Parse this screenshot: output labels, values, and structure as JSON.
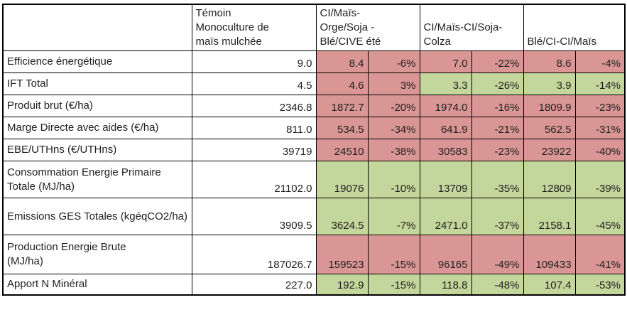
{
  "table": {
    "header": {
      "corner": "",
      "control": "Témoin Monoculture de maïs mulchée",
      "systems": [
        "CI/Maïs-Orge/Soja - Blé/CIVE été",
        "CI/Maïs-CI/Soja-Colza",
        "Blé/CI-CI/Maïs"
      ]
    },
    "colors": {
      "worse_fill": "#d99694",
      "better_fill": "#c3d69b",
      "border": "#000000",
      "text": "#1f1f1f",
      "background": "#ffffff"
    },
    "rows": [
      {
        "label": "Efficience énergétique",
        "control": "9.0",
        "pairs": [
          {
            "value": "8.4",
            "pct": "-6%",
            "tone": "worse"
          },
          {
            "value": "7.0",
            "pct": "-22%",
            "tone": "worse"
          },
          {
            "value": "8.6",
            "pct": "-4%",
            "tone": "worse"
          }
        ]
      },
      {
        "label": "IFT Total",
        "control": "4.5",
        "pairs": [
          {
            "value": "4.6",
            "pct": "3%",
            "tone": "worse"
          },
          {
            "value": "3.3",
            "pct": "-26%",
            "tone": "better"
          },
          {
            "value": "3.9",
            "pct": "-14%",
            "tone": "better"
          }
        ]
      },
      {
        "label": "Produit brut (€/ha)",
        "control": "2346.8",
        "pairs": [
          {
            "value": "1872.7",
            "pct": "-20%",
            "tone": "worse"
          },
          {
            "value": "1974.0",
            "pct": "-16%",
            "tone": "worse"
          },
          {
            "value": "1809.9",
            "pct": "-23%",
            "tone": "worse"
          }
        ]
      },
      {
        "label": "Marge Directe avec aides (€/ha)",
        "control": "811.0",
        "pairs": [
          {
            "value": "534.5",
            "pct": "-34%",
            "tone": "worse"
          },
          {
            "value": "641.9",
            "pct": "-21%",
            "tone": "worse"
          },
          {
            "value": "562.5",
            "pct": "-31%",
            "tone": "worse"
          }
        ]
      },
      {
        "label": "EBE/UTHns (€/UTHns)",
        "control": "39719",
        "pairs": [
          {
            "value": "24510",
            "pct": "-38%",
            "tone": "worse"
          },
          {
            "value": "30583",
            "pct": "-23%",
            "tone": "worse"
          },
          {
            "value": "23922",
            "pct": "-40%",
            "tone": "worse"
          }
        ]
      },
      {
        "label": "Consommation Energie Primaire Totale (MJ/ha)",
        "control": "21102.0",
        "pairs": [
          {
            "value": "19076",
            "pct": "-10%",
            "tone": "better"
          },
          {
            "value": "13709",
            "pct": "-35%",
            "tone": "better"
          },
          {
            "value": "12809",
            "pct": "-39%",
            "tone": "better"
          }
        ]
      },
      {
        "label": "Emissions GES Totales (kgéqCO2/ha)",
        "control": "3909.5",
        "pairs": [
          {
            "value": "3624.5",
            "pct": "-7%",
            "tone": "better"
          },
          {
            "value": "2471.0",
            "pct": "-37%",
            "tone": "better"
          },
          {
            "value": "2158.1",
            "pct": "-45%",
            "tone": "better"
          }
        ]
      },
      {
        "label": "Production Energie Brute (MJ/ha)",
        "control": "187026.7",
        "pairs": [
          {
            "value": "159523",
            "pct": "-15%",
            "tone": "worse"
          },
          {
            "value": "96165",
            "pct": "-49%",
            "tone": "worse"
          },
          {
            "value": "109433",
            "pct": "-41%",
            "tone": "worse"
          }
        ]
      },
      {
        "label": "Apport N Minéral",
        "control": "227.0",
        "pairs": [
          {
            "value": "192.9",
            "pct": "-15%",
            "tone": "better"
          },
          {
            "value": "118.8",
            "pct": "-48%",
            "tone": "better"
          },
          {
            "value": "107.4",
            "pct": "-53%",
            "tone": "better"
          }
        ]
      }
    ]
  }
}
